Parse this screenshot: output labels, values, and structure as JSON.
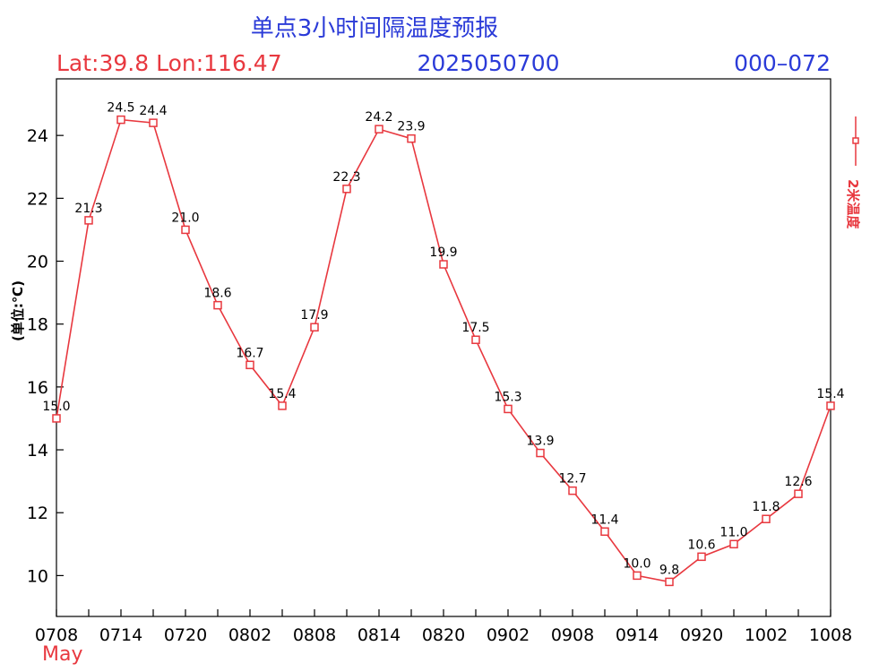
{
  "colors": {
    "title": "#2b3bd8",
    "red": "#e8383f",
    "blue": "#2b3bd8",
    "axis": "#000000"
  },
  "header": {
    "title": "单点3小时间隔温度预报",
    "location": "Lat:39.8 Lon:116.47",
    "init_time": "2025050700",
    "range": "000–072"
  },
  "axis": {
    "ylabel": "(单位:℃)",
    "month": "May",
    "legend": "2米温度"
  },
  "chart_data": {
    "type": "line",
    "title": "单点3小时间隔温度预报",
    "xlabel": "",
    "ylabel": "(单位:℃)",
    "ylim": [
      8.7,
      25.8
    ],
    "yticks": [
      10,
      12,
      14,
      16,
      18,
      20,
      22,
      24
    ],
    "x_tick_labels": [
      "0708",
      "0714",
      "0720",
      "0802",
      "0808",
      "0814",
      "0820",
      "0902",
      "0908",
      "0914",
      "0920",
      "1002",
      "1008"
    ],
    "x_month_label": "May",
    "series": [
      {
        "name": "2米温度",
        "color": "#e8383f",
        "marker": "square",
        "values": [
          15.0,
          21.3,
          24.5,
          24.4,
          21.0,
          18.6,
          16.7,
          15.4,
          17.9,
          22.3,
          24.2,
          23.9,
          19.9,
          17.5,
          15.3,
          13.9,
          12.7,
          11.4,
          10.0,
          9.8,
          10.6,
          11.0,
          11.8,
          12.6,
          15.4
        ],
        "labels": [
          "15.0",
          "21.3",
          "24.5",
          "24.4",
          "21.0",
          "18.6",
          "16.7",
          "15.4",
          "17.9",
          "22.3",
          "24.2",
          "23.9",
          "19.9",
          "17.5",
          "15.3",
          "13.9",
          "12.7",
          "11.4",
          "10.0",
          "9.8",
          "10.6",
          "11.0",
          "11.8",
          "12.6",
          "15.4"
        ]
      }
    ],
    "grid": false,
    "legend": "right"
  }
}
